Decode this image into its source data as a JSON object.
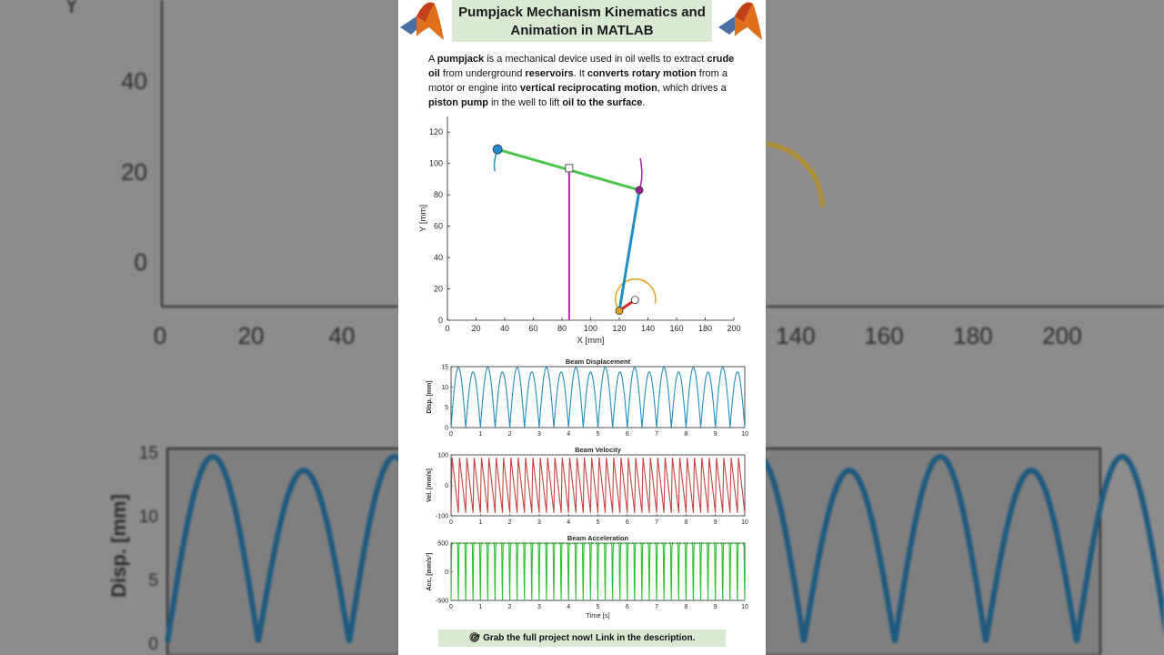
{
  "header": {
    "title_line1": "Pumpjack Mechanism Kinematics and",
    "title_line2": "Animation in MATLAB",
    "logo_icon": "matlab-membrane-icon"
  },
  "intro": {
    "segments": [
      {
        "t": "A ",
        "b": false
      },
      {
        "t": "pumpjack",
        "b": true
      },
      {
        "t": " is a mechanical device used in oil wells to extract  ",
        "b": false
      },
      {
        "t": "crude oil",
        "b": true
      },
      {
        "t": " from underground ",
        "b": false
      },
      {
        "t": "reservoirs",
        "b": true
      },
      {
        "t": ". It ",
        "b": false
      },
      {
        "t": "converts rotary motion",
        "b": true
      },
      {
        "t": " from a motor or engine into ",
        "b": false
      },
      {
        "t": "vertical reciprocating motion",
        "b": true
      },
      {
        "t": ", which drives a ",
        "b": false
      },
      {
        "t": "piston pump",
        "b": true
      },
      {
        "t": " in the well to lift ",
        "b": false
      },
      {
        "t": "oil to the surface",
        "b": true
      },
      {
        "t": ".",
        "b": false
      }
    ]
  },
  "cta": {
    "icon": "target-icon",
    "text": "Grab the full project now! Link in the description."
  },
  "mechanism": {
    "xlabel": "X [mm]",
    "ylabel": "Y [mm]",
    "xlim": [
      0,
      200
    ],
    "ylim": [
      0,
      130
    ],
    "xticks": [
      0,
      20,
      40,
      60,
      80,
      100,
      120,
      140,
      160,
      180,
      200
    ],
    "yticks": [
      0,
      20,
      40,
      60,
      80,
      100,
      120
    ],
    "links": [
      {
        "name": "beam",
        "color": "#4cc34c",
        "from": [
          35,
          109
        ],
        "to": [
          134,
          83
        ]
      },
      {
        "name": "rod",
        "color": "#1f8fc0",
        "from": [
          134,
          83
        ],
        "to": [
          120,
          6
        ]
      },
      {
        "name": "crank",
        "color": "#d62728",
        "from": [
          120,
          6
        ],
        "to": [
          131,
          13
        ]
      },
      {
        "name": "post",
        "color": "#c020c0",
        "from": [
          85,
          0
        ],
        "to": [
          85,
          97
        ]
      }
    ],
    "joints": [
      {
        "name": "horsehead",
        "pos": [
          35,
          109
        ],
        "color": "#1f8fdc"
      },
      {
        "name": "pivot",
        "pos": [
          85,
          97
        ],
        "color": "#ffffff"
      },
      {
        "name": "beam-end",
        "pos": [
          134,
          83
        ],
        "color": "#9b1f9b"
      },
      {
        "name": "crank-pin",
        "pos": [
          120,
          6
        ],
        "color": "#e0a020"
      },
      {
        "name": "crank-center",
        "pos": [
          131,
          13
        ],
        "color": "#ffffff"
      }
    ],
    "trace_colors": {
      "horsehead": "#1f8fc0",
      "beam-end": "#a020a0",
      "crank": "#e0a020"
    }
  },
  "chart_data": [
    {
      "type": "line",
      "title": "Beam Displacement",
      "ylabel": "Disp. [mm]",
      "xlabel": "",
      "xlim": [
        0,
        10
      ],
      "ylim": [
        0,
        15
      ],
      "xticks": [
        0,
        1,
        2,
        3,
        4,
        5,
        6,
        7,
        8,
        9,
        10
      ],
      "yticks": [
        0,
        5,
        10,
        15
      ],
      "color": "#1f8fc0",
      "period": 0.5,
      "peaks": [
        14.8,
        13.7
      ],
      "x": [
        0,
        0.125,
        0.25,
        0.375,
        0.5,
        0.625,
        0.75,
        0.875,
        1.0
      ],
      "y": [
        0,
        14.8,
        0,
        13.7,
        0,
        14.8,
        0,
        13.7,
        0
      ]
    },
    {
      "type": "line",
      "title": "Beam Velocity",
      "ylabel": "Vel. [mm/s]",
      "xlabel": "",
      "xlim": [
        0,
        10
      ],
      "ylim": [
        -100,
        100
      ],
      "xticks": [
        0,
        1,
        2,
        3,
        4,
        5,
        6,
        7,
        8,
        9,
        10
      ],
      "yticks": [
        -100,
        0,
        100
      ],
      "color": "#c84040",
      "period": 0.5,
      "x": [
        0,
        0.06,
        0.22,
        0.25,
        0.31,
        0.47,
        0.5
      ],
      "y": [
        -90,
        95,
        -85,
        -90,
        88,
        -90,
        -90
      ]
    },
    {
      "type": "line",
      "title": "Beam Acceleration",
      "ylabel": "Acc. [mm/s²]",
      "xlabel": "Time [s]",
      "xlim": [
        0,
        10
      ],
      "ylim": [
        -500,
        500
      ],
      "xticks": [
        0,
        1,
        2,
        3,
        4,
        5,
        6,
        7,
        8,
        9,
        10
      ],
      "yticks": [
        -500,
        0,
        500
      ],
      "color": "#30c030",
      "period": 0.5,
      "x": [
        0,
        0.05,
        0.2,
        0.25,
        0.3,
        0.45,
        0.5
      ],
      "y": [
        -450,
        480,
        480,
        -500,
        480,
        480,
        -450
      ]
    }
  ],
  "backdrop": {
    "xticks": [
      0,
      20,
      40,
      140,
      160,
      180,
      200
    ],
    "yticks": [
      0,
      20,
      40
    ],
    "yaxis_letter": "Y",
    "disp_ticks": [
      0,
      5,
      10,
      15
    ],
    "disp_label": "Disp. [mm]"
  }
}
